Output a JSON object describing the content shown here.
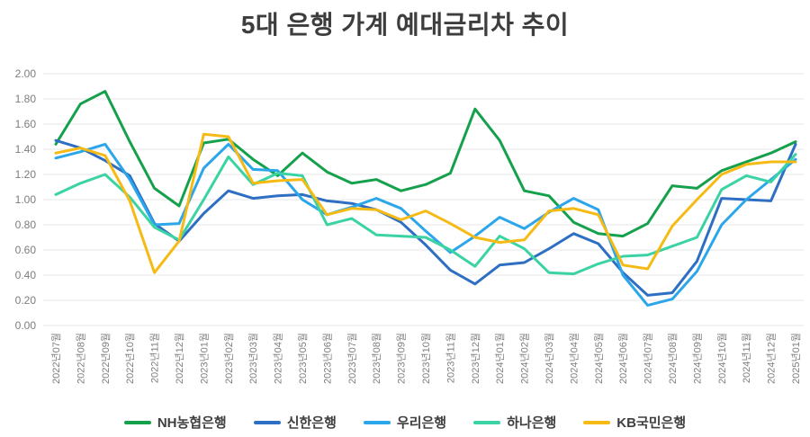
{
  "chart": {
    "title": "5대 은행 가계 예대금리차 추이"
  },
  "chart_data": {
    "type": "line",
    "title": "5대 은행 가계 예대금리차 추이",
    "xlabel": "",
    "ylabel": "",
    "ylim": [
      0.0,
      2.0
    ],
    "ytick_step": 0.2,
    "ytick_format_decimals": 2,
    "grid": true,
    "legend_position": "bottom",
    "axis_label_color": "#7d7d7d",
    "gridline_color": "#e7e7e7",
    "categories": [
      "2022년07월",
      "2022년08월",
      "2022년09월",
      "2022년10월",
      "2022년11월",
      "2022년12월",
      "2023년01월",
      "2023년02월",
      "2023년03월",
      "2023년04월",
      "2023년05월",
      "2023년06월",
      "2023년07월",
      "2023년08월",
      "2023년09월",
      "2023년10월",
      "2023년11월",
      "2023년12월",
      "2024년01월",
      "2024년02월",
      "2024년03월",
      "2024년04월",
      "2024년05월",
      "2024년06월",
      "2024년07월",
      "2024년08월",
      "2024년09월",
      "2024년10월",
      "2024년11월",
      "2024년12월",
      "2025년01월"
    ],
    "series": [
      {
        "name": "NH농협은행",
        "color": "#15A14C",
        "values": [
          1.44,
          1.76,
          1.86,
          1.46,
          1.09,
          0.95,
          1.45,
          1.48,
          1.32,
          1.19,
          1.37,
          1.22,
          1.13,
          1.16,
          1.07,
          1.12,
          1.21,
          1.72,
          1.47,
          1.07,
          1.03,
          0.82,
          0.73,
          0.71,
          0.81,
          1.11,
          1.09,
          1.23,
          1.3,
          1.37,
          1.46
        ]
      },
      {
        "name": "신한은행",
        "color": "#2E6FC4",
        "values": [
          1.47,
          1.41,
          1.31,
          1.19,
          0.81,
          0.67,
          0.89,
          1.07,
          1.01,
          1.03,
          1.04,
          0.99,
          0.97,
          0.92,
          0.82,
          0.64,
          0.44,
          0.33,
          0.48,
          0.5,
          0.61,
          0.73,
          0.65,
          0.42,
          0.24,
          0.26,
          0.51,
          1.01,
          1.0,
          0.99,
          1.44
        ]
      },
      {
        "name": "우리은행",
        "color": "#2BA6EA",
        "values": [
          1.33,
          1.38,
          1.44,
          1.16,
          0.8,
          0.81,
          1.25,
          1.44,
          1.24,
          1.23,
          1.0,
          0.88,
          0.94,
          1.01,
          0.93,
          0.75,
          0.58,
          0.71,
          0.86,
          0.77,
          0.9,
          1.01,
          0.92,
          0.4,
          0.16,
          0.21,
          0.43,
          0.8,
          1.0,
          1.16,
          1.32
        ]
      },
      {
        "name": "하나은행",
        "color": "#3BD3A4",
        "values": [
          1.04,
          1.13,
          1.2,
          1.02,
          0.78,
          0.68,
          1.0,
          1.34,
          1.12,
          1.21,
          1.19,
          0.8,
          0.85,
          0.72,
          0.71,
          0.7,
          0.6,
          0.47,
          0.71,
          0.61,
          0.42,
          0.41,
          0.49,
          0.55,
          0.56,
          0.63,
          0.7,
          1.08,
          1.19,
          1.14,
          1.36
        ]
      },
      {
        "name": "KB국민은행",
        "color": "#F6BA15",
        "values": [
          1.37,
          1.41,
          1.35,
          0.99,
          0.42,
          0.67,
          1.52,
          1.5,
          1.13,
          1.15,
          1.16,
          0.88,
          0.93,
          0.92,
          0.84,
          0.91,
          0.81,
          0.7,
          0.66,
          0.68,
          0.91,
          0.93,
          0.88,
          0.48,
          0.45,
          0.79,
          1.0,
          1.2,
          1.28,
          1.3,
          1.3
        ]
      }
    ]
  }
}
